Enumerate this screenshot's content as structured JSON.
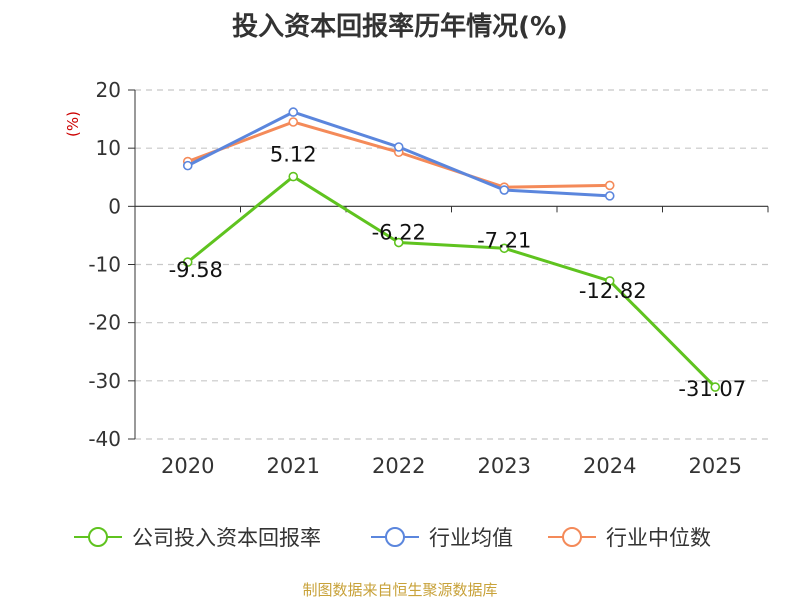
{
  "title": "投入资本回报率历年情况(%)",
  "source": "制图数据来自恒生聚源数据库",
  "colors": {
    "company": "#5fc31f",
    "industry_avg": "#5b86dd",
    "industry_median": "#f48a59",
    "grid": "#c8c8c8",
    "axis": "#333333",
    "unit": "#cc0000"
  },
  "chart_data": {
    "type": "line",
    "title": "投入资本回报率历年情况(%)",
    "ylabel": "(%)",
    "xlabel": "",
    "ylim": [
      -40,
      20
    ],
    "yticks": [
      20,
      10,
      0,
      -10,
      -20,
      -30,
      -40
    ],
    "grid": true,
    "legend": "bottom",
    "categories": [
      "2020",
      "2021",
      "2022",
      "2023",
      "2024",
      "2025"
    ],
    "series": [
      {
        "key": "company",
        "name": "公司投入资本回报率",
        "values": [
          -9.58,
          5.12,
          -6.22,
          -7.21,
          -12.82,
          -31.07
        ],
        "labels": [
          "-9.58",
          "5.12",
          "-6.22",
          "-7.21",
          "-12.82",
          "-31.07"
        ]
      },
      {
        "key": "industry_avg",
        "name": "行业均值",
        "values": [
          7.0,
          16.2,
          10.2,
          2.8,
          1.8,
          null
        ]
      },
      {
        "key": "industry_median",
        "name": "行业中位数",
        "values": [
          7.7,
          14.5,
          9.3,
          3.3,
          3.6,
          null
        ]
      }
    ]
  }
}
